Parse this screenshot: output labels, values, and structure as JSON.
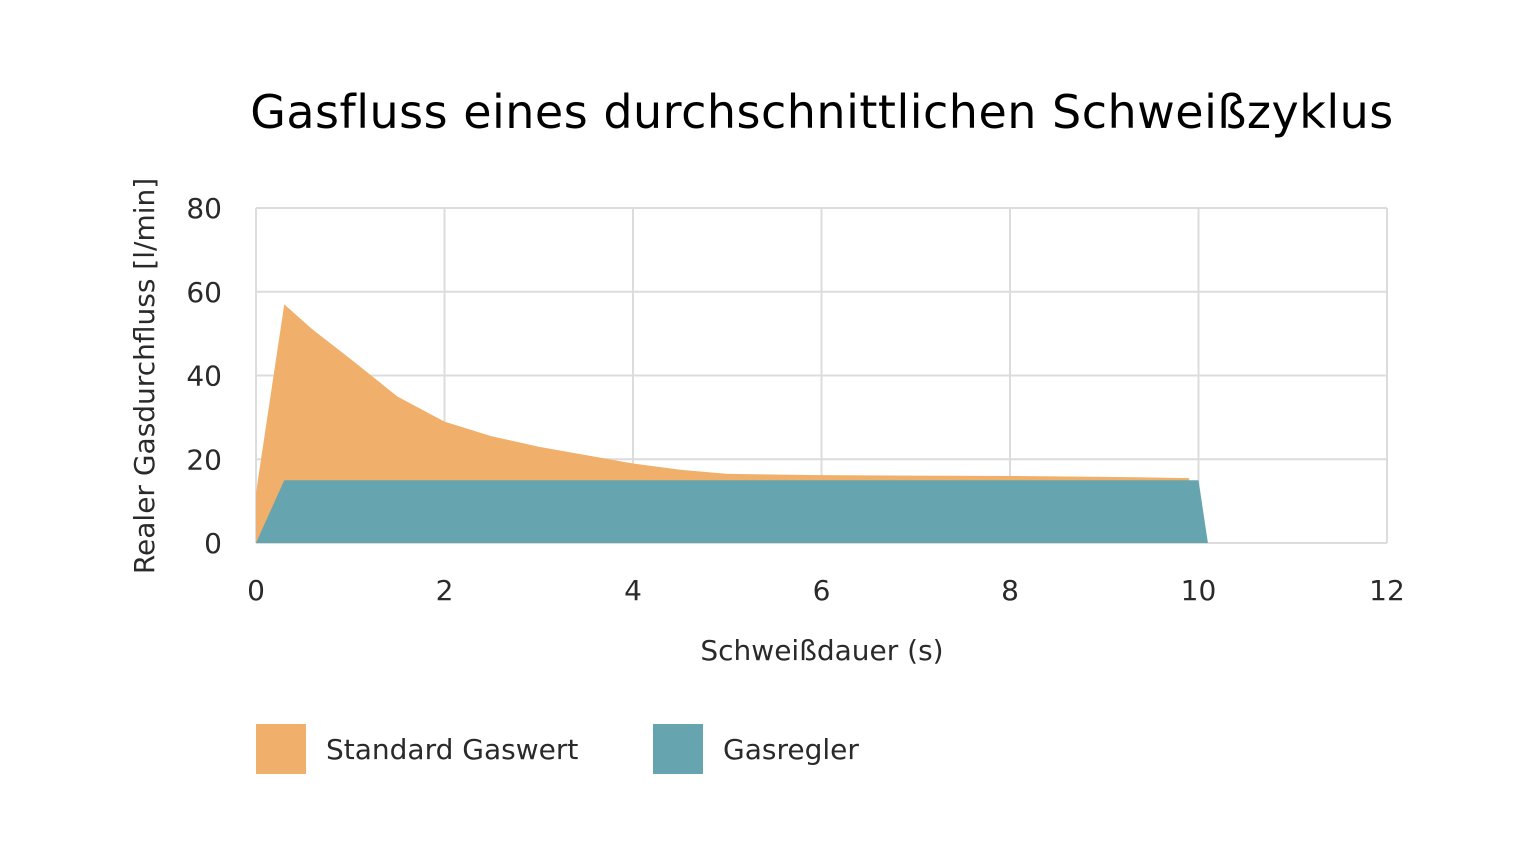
{
  "chart_data": {
    "type": "area",
    "title": "Gasfluss eines durchschnittlichen Schweißzyklus",
    "xlabel": "Schweißdauer (s)",
    "ylabel": "Realer Gasdurchfluss  [l/min]",
    "xlim": [
      0,
      12
    ],
    "ylim": [
      0,
      80
    ],
    "xticks": [
      "0",
      "2",
      "4",
      "6",
      "8",
      "10",
      "12"
    ],
    "yticks": [
      "0",
      "20",
      "40",
      "60",
      "80"
    ],
    "grid": true,
    "legend_position": "bottom-left",
    "series": [
      {
        "name": "Standard Gaswert",
        "color": "#F0AF6B",
        "x": [
          0,
          0.3,
          0.6,
          1.0,
          1.5,
          2.0,
          2.5,
          3.0,
          3.5,
          4.0,
          4.5,
          5.0,
          6.0,
          7.0,
          8.0,
          9.0,
          9.9,
          10.0
        ],
        "y": [
          12,
          57,
          51,
          44,
          35,
          29,
          25.5,
          23,
          21,
          19,
          17.5,
          16.5,
          16.2,
          16.1,
          16.0,
          15.8,
          15.5,
          0
        ]
      },
      {
        "name": "Gasregler",
        "color": "#66A5AF",
        "x": [
          0,
          0.3,
          10.0,
          10.1
        ],
        "y": [
          0,
          15,
          15,
          0
        ]
      }
    ]
  }
}
